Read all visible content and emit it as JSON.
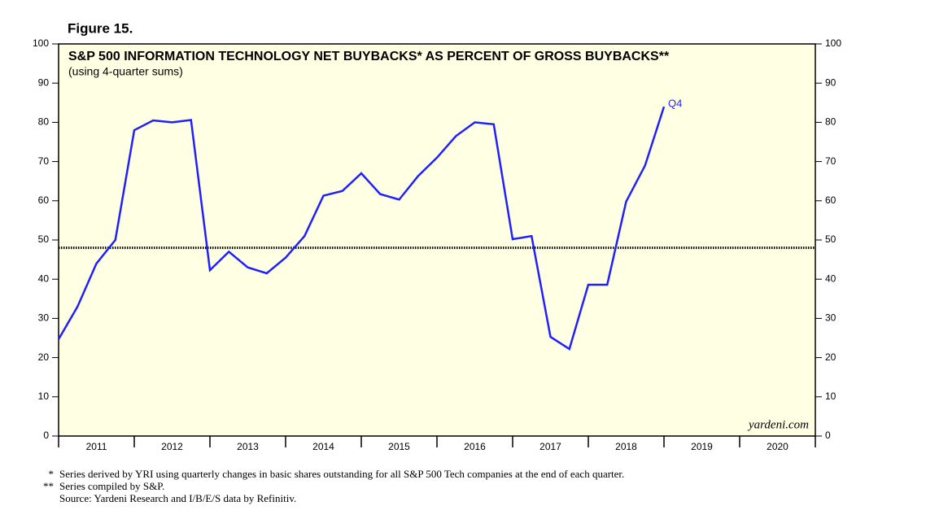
{
  "chart_data": {
    "type": "line",
    "figure_label": "Figure 15.",
    "title": "S&P 500 INFORMATION TECHNOLOGY NET BUYBACKS* AS PERCENT OF GROSS BUYBACKS**",
    "subtitle": "(using 4-quarter sums)",
    "x": [
      2011,
      2011.25,
      2011.5,
      2011.75,
      2012,
      2012.25,
      2012.5,
      2012.75,
      2013,
      2013.25,
      2013.5,
      2013.75,
      2014,
      2014.25,
      2014.5,
      2014.75,
      2015,
      2015.25,
      2015.5,
      2015.75,
      2016,
      2016.25,
      2016.5,
      2016.75,
      2017,
      2017.25,
      2017.5,
      2017.75,
      2018,
      2018.25,
      2018.5,
      2018.75,
      2019
    ],
    "series": [
      {
        "color": "#1f1fff",
        "values": [
          24.7,
          33,
          44,
          50,
          78,
          80.5,
          80,
          80.6,
          42.3,
          47,
          43,
          41.5,
          45.5,
          51,
          61.3,
          62.5,
          67,
          61.7,
          60.3,
          66.3,
          71,
          76.5,
          80,
          79.5,
          50.2,
          51,
          25.3,
          22.2,
          38.6,
          38.6,
          59.8,
          69,
          84
        ]
      }
    ],
    "end_label": "Q4",
    "reference_line": 48,
    "xlim": [
      2011,
      2021
    ],
    "xticks": [
      {
        "value": 2011.5,
        "label": "2011"
      },
      {
        "value": 2012.5,
        "label": "2012"
      },
      {
        "value": 2013.5,
        "label": "2013"
      },
      {
        "value": 2014.5,
        "label": "2014"
      },
      {
        "value": 2015.5,
        "label": "2015"
      },
      {
        "value": 2016.5,
        "label": "2016"
      },
      {
        "value": 2017.5,
        "label": "2017"
      },
      {
        "value": 2018.5,
        "label": "2018"
      },
      {
        "value": 2019.5,
        "label": "2019"
      },
      {
        "value": 2020.5,
        "label": "2020"
      }
    ],
    "ylim": [
      0,
      100
    ],
    "yticks": [
      0,
      10,
      20,
      30,
      40,
      50,
      60,
      70,
      80,
      90,
      100
    ],
    "watermark": "yardeni.com",
    "footnotes": [
      {
        "marker": "*",
        "text": "Series derived by YRI using quarterly changes in basic shares outstanding for all S&P 500 Tech companies at the end of each quarter."
      },
      {
        "marker": "**",
        "text": "Series compiled by S&P."
      },
      {
        "marker": "",
        "text": "Source: Yardeni Research and I/B/E/S data by Refinitiv."
      }
    ]
  }
}
